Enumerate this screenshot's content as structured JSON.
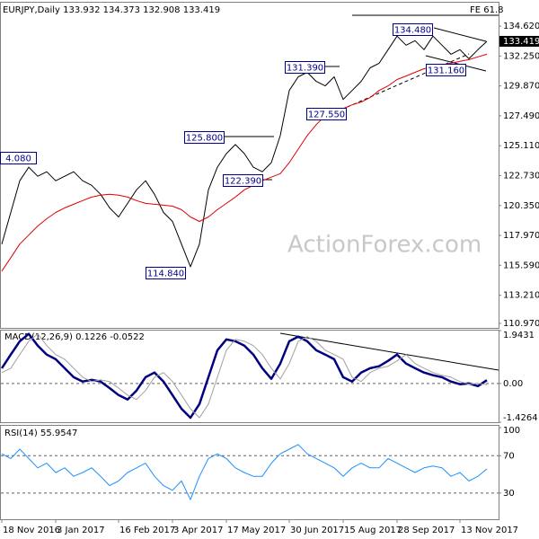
{
  "chart_data": [
    {
      "type": "line",
      "title": "EURJPY,Daily 133.932 134.373 132.908 133.419",
      "watermark": "ActionForex.com",
      "fe_label": "FE 61.8",
      "categories": [
        "18 Nov 2016",
        null,
        null,
        null,
        null,
        null,
        "3 Jan 2017",
        null,
        null,
        null,
        null,
        null,
        null,
        "16 Feb 2017",
        null,
        null,
        null,
        null,
        null,
        "3 Apr 2017",
        null,
        null,
        null,
        null,
        null,
        "17 May 2017",
        null,
        null,
        null,
        null,
        null,
        null,
        "30 Jun 2017",
        null,
        null,
        null,
        null,
        null,
        "15 Aug 2017",
        null,
        null,
        null,
        null,
        null,
        "28 Sep 2017",
        null,
        null,
        null,
        null,
        null,
        null,
        "13 Nov 2017",
        null,
        null,
        null
      ],
      "series": [
        {
          "color": "#000000",
          "values": [
            117.28,
            119.8,
            122.32,
            123.4,
            122.68,
            123.04,
            122.32,
            122.68,
            123.04,
            122.32,
            121.96,
            121.24,
            120.16,
            119.44,
            120.52,
            121.6,
            122.32,
            121.24,
            119.8,
            119.08,
            117.28,
            115.48,
            117.28,
            121.6,
            123.4,
            124.48,
            125.2,
            124.48,
            123.4,
            123.04,
            123.76,
            125.92,
            129.51,
            130.59,
            130.95,
            130.23,
            129.87,
            130.59,
            128.79,
            129.51,
            130.23,
            131.31,
            131.67,
            132.75,
            133.83,
            133.11,
            133.47,
            132.75,
            133.83,
            133.11,
            132.39,
            132.75,
            132.03,
            132.75,
            133.42
          ]
        },
        {
          "color": "#e00000",
          "values": [
            115.13,
            116.2,
            117.28,
            118.0,
            118.72,
            119.3,
            119.8,
            120.16,
            120.45,
            120.74,
            121.02,
            121.17,
            121.24,
            121.17,
            121.02,
            120.74,
            120.52,
            120.45,
            120.38,
            120.3,
            120.02,
            119.44,
            119.08,
            119.44,
            120.02,
            120.52,
            121.02,
            121.6,
            121.96,
            122.32,
            122.61,
            122.89,
            123.76,
            124.84,
            125.92,
            126.78,
            127.5,
            127.71,
            128.07,
            128.36,
            128.58,
            128.94,
            129.51,
            129.87,
            130.38,
            130.66,
            130.95,
            131.24,
            131.38,
            131.53,
            131.67,
            131.82,
            131.96,
            132.18,
            132.39
          ]
        }
      ],
      "ylim": [
        110.54,
        136.42
      ],
      "yticks": [
        {
          "value": 134.62,
          "label": "134.620"
        },
        {
          "value": 132.25,
          "label": "132.250"
        },
        {
          "value": 129.87,
          "label": "129.870"
        },
        {
          "value": 127.49,
          "label": "127.490"
        },
        {
          "value": 125.11,
          "label": "125.110"
        },
        {
          "value": 122.73,
          "label": "122.730"
        },
        {
          "value": 120.35,
          "label": "120.350"
        },
        {
          "value": 117.97,
          "label": "117.970"
        },
        {
          "value": 115.59,
          "label": "115.590"
        },
        {
          "value": 113.21,
          "label": "113.210"
        },
        {
          "value": 110.97,
          "label": "110.970"
        }
      ],
      "current_price": 133.419,
      "annotations": [
        "4.080",
        "125.800",
        "122.390",
        "114.840",
        "131.390",
        "127.550",
        "134.480",
        "131.160"
      ]
    },
    {
      "type": "line",
      "title": "MACD(12,26,9) 0.1226 -0.0522",
      "series": [
        {
          "color": "#000080",
          "values": [
            0.56,
            1.06,
            1.55,
            1.82,
            1.39,
            1.06,
            0.89,
            0.56,
            0.23,
            0.07,
            0.13,
            0.07,
            -0.17,
            -0.43,
            -0.59,
            -0.26,
            0.23,
            0.4,
            0.07,
            -0.43,
            -0.93,
            -1.26,
            -0.76,
            0.23,
            1.22,
            1.62,
            1.55,
            1.39,
            1.06,
            0.56,
            0.17,
            0.73,
            1.55,
            1.72,
            1.55,
            1.22,
            1.06,
            0.89,
            0.23,
            0.07,
            0.4,
            0.56,
            0.63,
            0.83,
            1.06,
            0.73,
            0.56,
            0.4,
            0.3,
            0.23,
            0.07,
            -0.03,
            0.0,
            -0.1,
            0.12
          ]
        },
        {
          "color": "#a0a0a0",
          "values": [
            0.4,
            0.56,
            1.06,
            1.55,
            1.82,
            1.39,
            1.06,
            0.89,
            0.56,
            0.23,
            0.07,
            0.13,
            0.07,
            -0.17,
            -0.43,
            -0.59,
            -0.26,
            0.23,
            0.4,
            0.07,
            -0.43,
            -0.93,
            -1.26,
            -0.76,
            0.23,
            1.22,
            1.62,
            1.55,
            1.39,
            1.06,
            0.56,
            0.17,
            0.73,
            1.55,
            1.72,
            1.55,
            1.22,
            1.06,
            0.89,
            0.23,
            0.07,
            0.4,
            0.56,
            0.63,
            0.83,
            1.06,
            0.73,
            0.56,
            0.4,
            0.3,
            0.23,
            0.07,
            -0.03,
            0.0,
            -0.05
          ]
        }
      ],
      "ylim": [
        -1.4264,
        1.9431
      ],
      "yticks": [
        1.9431,
        {
          "value": 0,
          "label": "0.00"
        },
        -1.4264
      ],
      "levels": [
        0
      ]
    },
    {
      "type": "line",
      "title": "RSI(14) 55.9547",
      "series": [
        {
          "color": "#1e90ff",
          "values": [
            72,
            67,
            77,
            67,
            57,
            62,
            52,
            57,
            48,
            52,
            57,
            48,
            38,
            43,
            52,
            57,
            62,
            48,
            38,
            33,
            43,
            23,
            48,
            67,
            72,
            67,
            57,
            52,
            48,
            48,
            62,
            72,
            77,
            82,
            72,
            67,
            62,
            57,
            48,
            57,
            62,
            57,
            57,
            67,
            62,
            57,
            52,
            57,
            59,
            57,
            48,
            52,
            43,
            48,
            55.95
          ]
        }
      ],
      "ylim": [
        2,
        102
      ],
      "yticks": [
        100,
        70,
        30
      ],
      "levels": [
        70,
        30
      ]
    }
  ]
}
